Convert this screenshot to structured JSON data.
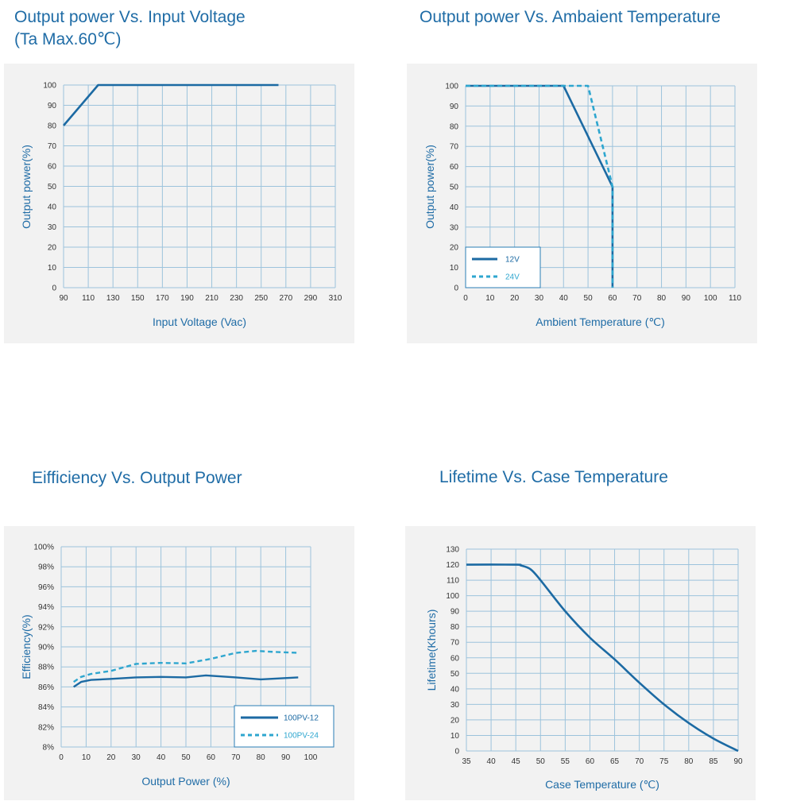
{
  "chart_data": [
    {
      "type": "line",
      "title": "Output power Vs. Input Voltage",
      "subtitle": "(Ta Max.60℃)",
      "xlabel": "Input Voltage (Vac)",
      "ylabel": "Output power(%)",
      "xlim": [
        90,
        310
      ],
      "ylim": [
        0,
        100
      ],
      "xticks": [
        "90",
        "110",
        "130",
        "150",
        "170",
        "190",
        "210",
        "230",
        "250",
        "270",
        "290",
        "310"
      ],
      "yticks": [
        "0",
        "10",
        "20",
        "30",
        "40",
        "50",
        "60",
        "70",
        "80",
        "90",
        "100"
      ],
      "grid": true,
      "series": [
        {
          "x": [
            90,
            118,
            264
          ],
          "y": [
            80,
            100,
            100
          ],
          "color": "#1c6aa3",
          "style": "solid"
        }
      ]
    },
    {
      "type": "line",
      "title": "Output power Vs. Ambaient Temperature",
      "xlabel": "Ambient Temperature (℃)",
      "ylabel": "Output power(%)",
      "xlim": [
        0,
        110
      ],
      "ylim": [
        0,
        100
      ],
      "xticks": [
        "0",
        "10",
        "20",
        "30",
        "40",
        "50",
        "60",
        "70",
        "80",
        "90",
        "100",
        "110"
      ],
      "yticks": [
        "0",
        "10",
        "20",
        "30",
        "40",
        "50",
        "60",
        "70",
        "80",
        "90",
        "100"
      ],
      "grid": true,
      "legend": "bottom-left",
      "series": [
        {
          "name": "12V",
          "x": [
            0,
            40,
            60,
            60
          ],
          "y": [
            100,
            100,
            50,
            0
          ],
          "color": "#1c6aa3",
          "style": "solid"
        },
        {
          "name": "24V",
          "x": [
            0,
            50,
            60,
            60
          ],
          "y": [
            100,
            100,
            50,
            0
          ],
          "color": "#2ea6cf",
          "style": "dashed"
        }
      ]
    },
    {
      "type": "line",
      "title": "Eifficiency Vs. Output Power",
      "xlabel": "Output Power (%)",
      "ylabel": "Efficiency(%)",
      "xlim": [
        0,
        100
      ],
      "xticks": [
        "0",
        "10",
        "20",
        "30",
        "40",
        "50",
        "60",
        "70",
        "80",
        "90",
        "100"
      ],
      "yticks": [
        "8%",
        "82%",
        "84%",
        "86%",
        "88%",
        "90%",
        "92%",
        "94%",
        "96%",
        "98%",
        "100%"
      ],
      "grid": true,
      "legend": "bottom-right",
      "series": [
        {
          "name": "100PV-12",
          "x": [
            5,
            8,
            12,
            20,
            30,
            40,
            50,
            58,
            70,
            80,
            95
          ],
          "y": [
            86.0,
            86.5,
            86.7,
            86.8,
            86.95,
            87.0,
            86.95,
            87.15,
            86.95,
            86.75,
            86.95
          ],
          "color": "#1c6aa3",
          "style": "solid"
        },
        {
          "name": "100PV-24",
          "x": [
            5,
            8,
            12,
            20,
            30,
            40,
            50,
            60,
            70,
            78,
            85,
            95
          ],
          "y": [
            86.5,
            87.0,
            87.3,
            87.6,
            88.3,
            88.4,
            88.35,
            88.8,
            89.4,
            89.6,
            89.5,
            89.4
          ],
          "color": "#2ea6cf",
          "style": "dashed"
        }
      ]
    },
    {
      "type": "line",
      "title": "Lifetime Vs. Case Temperature",
      "xlabel": "Case Temperature (℃)",
      "ylabel": "Lifetime(Khours)",
      "xlim": [
        35,
        90
      ],
      "ylim": [
        0,
        130
      ],
      "xticks": [
        "35",
        "40",
        "45",
        "50",
        "55",
        "60",
        "65",
        "70",
        "75",
        "80",
        "85",
        "90"
      ],
      "yticks": [
        "0",
        "10",
        "20",
        "30",
        "40",
        "50",
        "60",
        "70",
        "80",
        "90",
        "100",
        "110",
        "120",
        "130"
      ],
      "grid": true,
      "series": [
        {
          "x": [
            35,
            45,
            46,
            48,
            50,
            55,
            60,
            65,
            70,
            75,
            80,
            85,
            90
          ],
          "y": [
            120,
            120,
            119.5,
            117,
            110,
            90,
            73,
            59,
            44,
            30,
            18,
            8,
            0
          ],
          "color": "#1c6aa3",
          "style": "solid"
        }
      ]
    }
  ]
}
